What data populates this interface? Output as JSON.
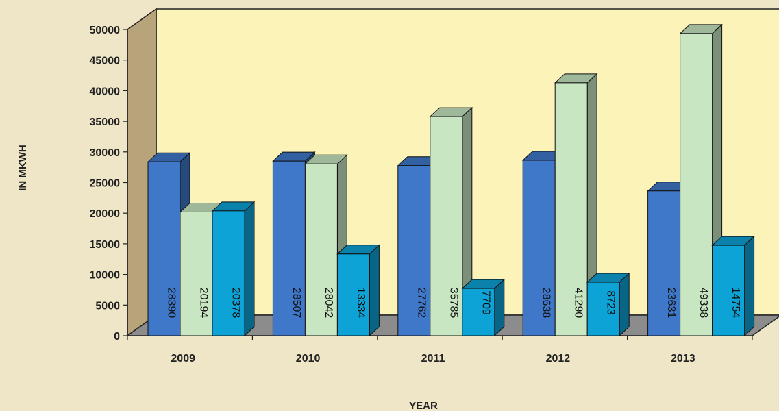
{
  "chart_data": {
    "type": "bar",
    "title": "",
    "xlabel": "YEAR",
    "ylabel": "IN MKWH",
    "ylim": [
      0,
      50000
    ],
    "yticks": [
      0,
      5000,
      10000,
      15000,
      20000,
      25000,
      30000,
      35000,
      40000,
      45000,
      50000
    ],
    "categories": [
      "2009",
      "2010",
      "2011",
      "2012",
      "2013"
    ],
    "grid": false,
    "legend": "none",
    "style": "3d-column",
    "series": [
      {
        "values": [
          28390,
          28507,
          27762,
          28638,
          23631
        ],
        "color": "#3f78c9"
      },
      {
        "values": [
          20194,
          28042,
          35785,
          41290,
          49338
        ],
        "color": "#c8e6c1"
      },
      {
        "values": [
          20378,
          13334,
          7709,
          8723,
          14754
        ],
        "color": "#0ea3d6"
      }
    ],
    "colors": {
      "plot_back": "#fbf3b8",
      "plot_side": "#b8a47a",
      "floor": "#8c8c8c",
      "page_background": "#efe6c8"
    }
  }
}
